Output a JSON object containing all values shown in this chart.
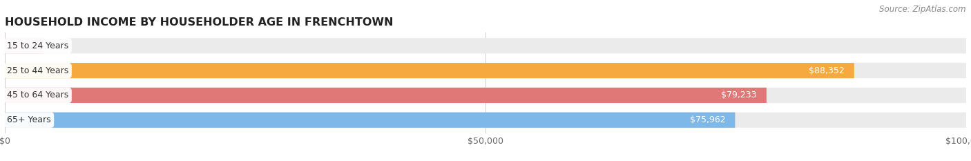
{
  "title": "HOUSEHOLD INCOME BY HOUSEHOLDER AGE IN FRENCHTOWN",
  "source_text": "Source: ZipAtlas.com",
  "categories": [
    "15 to 24 Years",
    "25 to 44 Years",
    "45 to 64 Years",
    "65+ Years"
  ],
  "values": [
    0,
    88352,
    79233,
    75962
  ],
  "bar_colors": [
    "#f5aec0",
    "#f5a93e",
    "#e07878",
    "#7db8e8"
  ],
  "bar_bg_color": "#ebebeb",
  "background_color": "#ffffff",
  "xlim": [
    0,
    100000
  ],
  "xtick_values": [
    0,
    50000,
    100000
  ],
  "xtick_labels": [
    "$0",
    "$50,000",
    "$100,000"
  ],
  "bar_height": 0.62,
  "bar_gap": 0.08,
  "title_fontsize": 11.5,
  "label_fontsize": 9,
  "value_fontsize": 9,
  "source_fontsize": 8.5
}
